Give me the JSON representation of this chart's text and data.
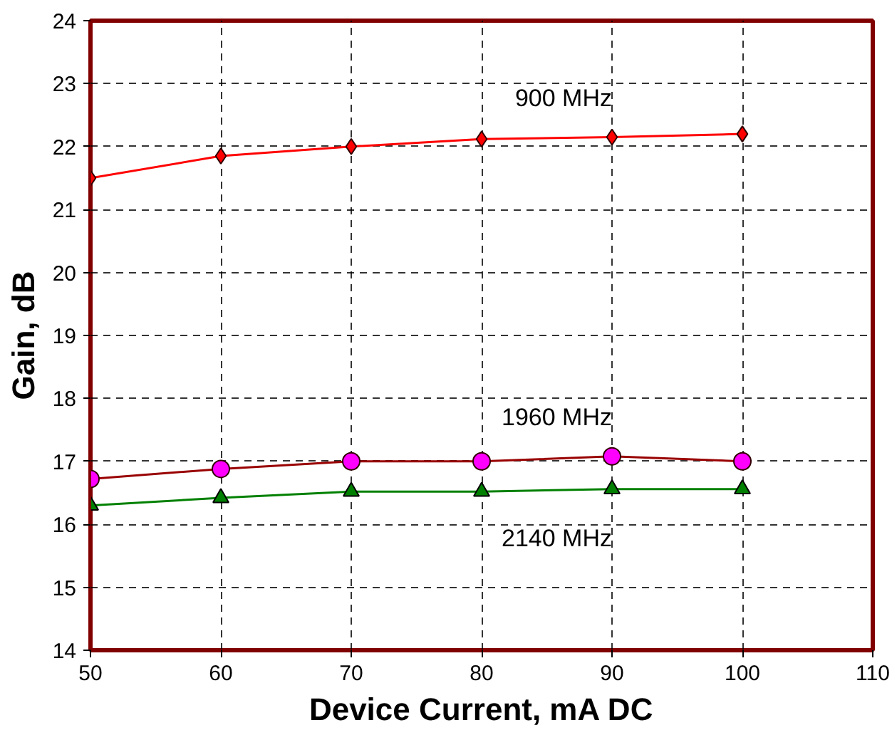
{
  "chart_data": {
    "type": "line",
    "xlabel": "Device Current, mA DC",
    "ylabel": "Gain, dB",
    "x": [
      50,
      60,
      70,
      80,
      90,
      100
    ],
    "series": [
      {
        "name": "900 MHz",
        "color": "#ff0000",
        "marker": "diamond",
        "values": [
          21.5,
          21.85,
          22.0,
          22.12,
          22.15,
          22.2
        ]
      },
      {
        "name": "1960 MHz",
        "color": "#990000",
        "marker": "circle",
        "values": [
          16.72,
          16.88,
          17.0,
          17.0,
          17.08,
          17.0
        ]
      },
      {
        "name": "2140 MHz",
        "color": "#008000",
        "marker": "triangle",
        "values": [
          16.3,
          16.42,
          16.52,
          16.52,
          16.56,
          16.56
        ]
      }
    ],
    "xlim": [
      50,
      110
    ],
    "xticks": [
      50,
      60,
      70,
      80,
      90,
      100,
      110
    ],
    "ylim": [
      14,
      24
    ],
    "yticks": [
      14,
      15,
      16,
      17,
      18,
      19,
      20,
      21,
      22,
      23,
      24
    ],
    "grid": true,
    "line_style": "solid"
  }
}
